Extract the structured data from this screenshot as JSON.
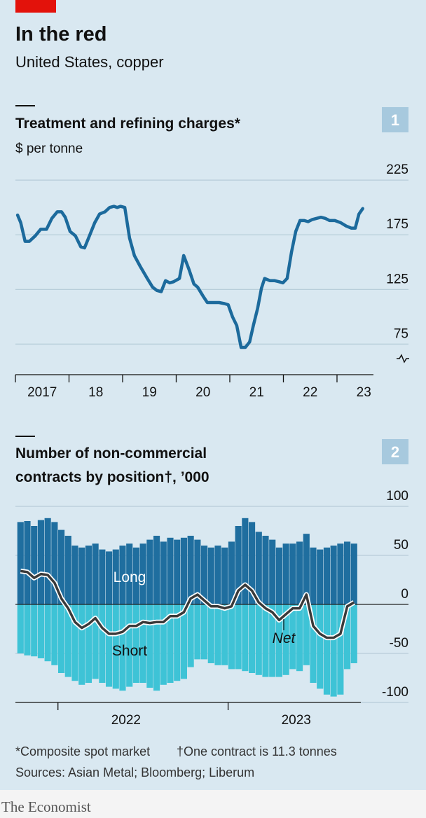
{
  "header": {
    "title": "In the red",
    "subtitle": "United States, copper"
  },
  "chart_data": [
    {
      "type": "line",
      "panel": "1",
      "title": "Treatment and refining charges*",
      "y_label": "$ per tonne",
      "x": [
        2017.04,
        2017.1,
        2017.18,
        2017.26,
        2017.37,
        2017.47,
        2017.58,
        2017.68,
        2017.78,
        2017.86,
        2017.93,
        2018.02,
        2018.12,
        2018.22,
        2018.29,
        2018.39,
        2018.48,
        2018.57,
        2018.67,
        2018.76,
        2018.84,
        2018.9,
        2018.96,
        2019.04,
        2019.13,
        2019.22,
        2019.33,
        2019.46,
        2019.56,
        2019.64,
        2019.72,
        2019.8,
        2019.88,
        2019.95,
        2020.06,
        2020.14,
        2020.24,
        2020.33,
        2020.4,
        2020.5,
        2020.58,
        2020.7,
        2020.8,
        2020.9,
        2020.97,
        2021.05,
        2021.13,
        2021.21,
        2021.29,
        2021.37,
        2021.44,
        2021.52,
        2021.59,
        2021.65,
        2021.75,
        2021.84,
        2021.92,
        2021.99,
        2022.07,
        2022.15,
        2022.23,
        2022.31,
        2022.39,
        2022.46,
        2022.54,
        2022.62,
        2022.7,
        2022.78,
        2022.86,
        2022.96,
        2023.07,
        2023.17,
        2023.27,
        2023.34,
        2023.41,
        2023.48
      ],
      "values": [
        193,
        186,
        169,
        169,
        174,
        180,
        180,
        190,
        196,
        196,
        191,
        178,
        174,
        164,
        163,
        175,
        186,
        194,
        196,
        200,
        201,
        200,
        201,
        200,
        172,
        156,
        146,
        135,
        127,
        124,
        123,
        133,
        131,
        132,
        135,
        156,
        143,
        130,
        127,
        119,
        113,
        113,
        113,
        112,
        111,
        100,
        92,
        72,
        72,
        77,
        92,
        108,
        126,
        135,
        133,
        133,
        132,
        131,
        135,
        159,
        178,
        188,
        188,
        187,
        189,
        190,
        191,
        190,
        188,
        188,
        186,
        183,
        181,
        181,
        194,
        199
      ],
      "color": "#1c6a9c",
      "xlim": [
        2017,
        2023.68
      ],
      "xticks": [
        {
          "value": 2017,
          "label": "2017"
        },
        {
          "value": 2018,
          "label": "18"
        },
        {
          "value": 2019,
          "label": "19"
        },
        {
          "value": 2020,
          "label": "20"
        },
        {
          "value": 2021,
          "label": "21"
        },
        {
          "value": 2022,
          "label": "22"
        },
        {
          "value": 2023,
          "label": "23"
        }
      ],
      "ylim": [
        47,
        236
      ],
      "yticks": [
        75,
        125,
        175,
        225
      ],
      "grid": true
    },
    {
      "type": "bar",
      "stacked": true,
      "panel": "2",
      "title": [
        "Number of non-commercial",
        "contracts by position†, ’000"
      ],
      "x": [
        2021.78,
        2021.82,
        2021.86,
        2021.9,
        2021.94,
        2021.98,
        2022.02,
        2022.06,
        2022.1,
        2022.14,
        2022.18,
        2022.22,
        2022.26,
        2022.3,
        2022.34,
        2022.38,
        2022.42,
        2022.46,
        2022.5,
        2022.54,
        2022.58,
        2022.62,
        2022.66,
        2022.7,
        2022.74,
        2022.78,
        2022.82,
        2022.86,
        2022.9,
        2022.94,
        2022.98,
        2023.02,
        2023.06,
        2023.1,
        2023.14,
        2023.18,
        2023.22,
        2023.26,
        2023.3,
        2023.34,
        2023.38,
        2023.42,
        2023.46,
        2023.5,
        2023.54,
        2023.58,
        2023.62,
        2023.66,
        2023.7,
        2023.74
      ],
      "series": [
        {
          "name": "Long",
          "color": "#1f6e9f",
          "values": [
            84,
            85,
            80,
            86,
            88,
            84,
            76,
            70,
            60,
            58,
            60,
            62,
            56,
            54,
            56,
            60,
            62,
            58,
            62,
            66,
            70,
            64,
            68,
            66,
            68,
            70,
            66,
            60,
            58,
            60,
            58,
            64,
            80,
            88,
            84,
            74,
            70,
            66,
            58,
            62,
            62,
            64,
            72,
            58,
            56,
            58,
            60,
            62,
            64,
            62
          ]
        },
        {
          "name": "Short",
          "color": "#3ec3d6",
          "values": [
            -50,
            -52,
            -53,
            -55,
            -58,
            -62,
            -70,
            -74,
            -78,
            -82,
            -80,
            -76,
            -80,
            -84,
            -86,
            -88,
            -84,
            -80,
            -80,
            -85,
            -88,
            -82,
            -80,
            -78,
            -76,
            -64,
            -56,
            -56,
            -60,
            -62,
            -62,
            -66,
            -66,
            -68,
            -70,
            -72,
            -74,
            -74,
            -74,
            -72,
            -66,
            -68,
            -62,
            -80,
            -86,
            -92,
            -94,
            -92,
            -66,
            -60
          ]
        },
        {
          "name": "Net",
          "type": "line",
          "color": "#3a3a3a",
          "values": [
            34,
            33,
            27,
            31,
            30,
            22,
            6,
            -4,
            -18,
            -24,
            -20,
            -14,
            -24,
            -30,
            -30,
            -28,
            -22,
            -22,
            -18,
            -19,
            -18,
            -18,
            -12,
            -12,
            -8,
            6,
            10,
            4,
            -2,
            -2,
            -4,
            -2,
            14,
            20,
            14,
            2,
            -4,
            -8,
            -16,
            -10,
            -4,
            -4,
            10,
            -22,
            -30,
            -34,
            -34,
            -30,
            -2,
            2
          ]
        }
      ],
      "xlim": [
        2021.75,
        2023.78
      ],
      "xticks": [
        2022,
        2023
      ],
      "ylim": [
        -100,
        100
      ],
      "yticks": [
        -100,
        -50,
        0,
        50,
        100
      ],
      "grid": true
    }
  ],
  "footer": {
    "note1": "*Composite spot market",
    "note2": "†One contract is 11.3 tonnes",
    "sources": "Sources: Asian Metal; Bloomberg; Liberum",
    "brand": "The Economist"
  }
}
